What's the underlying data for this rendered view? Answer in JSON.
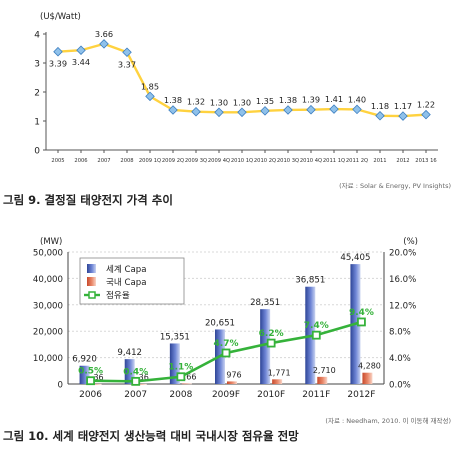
{
  "chart_data": [
    {
      "type": "line",
      "unit_label": "(U$/Watt)",
      "x": [
        "2005",
        "2006",
        "2007",
        "2008",
        "2009 1Q",
        "2009 2Q",
        "2009 3Q",
        "2009 4Q",
        "2010 1Q",
        "2010 2Q",
        "2010 3Q",
        "2010 4Q",
        "2011 1Q",
        "2011 2Q",
        "2011",
        "2012",
        "2013 16"
      ],
      "x_tick_labels": [
        "2005",
        "2006",
        "2007",
        "2008",
        "2009 1Q",
        "2009 2Q",
        "2009 3Q",
        "2009 4Q",
        "2010 1Q",
        "2010 2Q",
        "2010 3Q",
        "2010 4Q",
        "2011 1Q",
        "2011 2Q",
        "2011",
        "2012",
        "2013 16"
      ],
      "series": [
        {
          "values": [
            3.39,
            3.44,
            3.66,
            3.37,
            1.85,
            1.38,
            1.32,
            1.3,
            1.3,
            1.35,
            1.38,
            1.39,
            1.41,
            1.4,
            1.18,
            1.17,
            1.22
          ]
        }
      ],
      "data_labels": [
        "3.39",
        "3.44",
        "3.66",
        "3.37",
        "1.85",
        "1.38",
        "1.32",
        "1.30",
        "1.30",
        "1.35",
        "1.38",
        "1.39",
        "1.41",
        "1.40",
        "1.18",
        "1.17",
        "1.22"
      ],
      "y_ticks": [
        "4",
        "3",
        "2",
        "1",
        "0"
      ],
      "ylim": [
        0,
        4
      ],
      "grid": false,
      "caption": "그림 9. 결정질 태양전지 가격 추이",
      "source": "(자료 : Solar & Energy, PV Insights)",
      "colors": {
        "line": "#ffd23f",
        "marker": "#8fc1ea"
      }
    },
    {
      "type": "bar",
      "categories": [
        "2006",
        "2007",
        "2008",
        "2009F",
        "2010F",
        "2011F",
        "2012F"
      ],
      "series": [
        {
          "name": "세계 Capa",
          "values": [
            6920,
            9412,
            15351,
            20651,
            28351,
            36851,
            45405
          ],
          "labels": [
            "6,920",
            "9,412",
            "15,351",
            "20,651",
            "28,351",
            "36,851",
            "45,405"
          ]
        },
        {
          "name": "국내 Capa",
          "values": [
            36,
            36,
            166,
            976,
            1771,
            2710,
            4280
          ],
          "labels": [
            "36",
            "36",
            "166",
            "976",
            "1,771",
            "2,710",
            "4,280"
          ]
        },
        {
          "name": "점유율",
          "type": "line",
          "axis": "right",
          "values": [
            0.5,
            0.4,
            1.1,
            4.7,
            6.2,
            7.4,
            9.4
          ],
          "labels": [
            "0.5%",
            "0.4%",
            "1.1%",
            "4.7%",
            "6.2%",
            "7.4%",
            "9.4%"
          ]
        }
      ],
      "left_unit": "(MW)",
      "right_unit": "(%)",
      "y_left_ticks": [
        "50,000",
        "40,000",
        "30,000",
        "20,000",
        "10,000",
        "0"
      ],
      "y_right_ticks": [
        "20.0%",
        "16.0%",
        "12.0%",
        "8.0%",
        "4.0%",
        "0.0%"
      ],
      "ylim_left": [
        0,
        50000
      ],
      "ylim_right": [
        0,
        20
      ],
      "legend_position": "top-left",
      "caption": "그림 10. 세계 태양전지 생산능력 대비 국내시장 점유율 전망",
      "source": "(자료 : Needham, 2010. 이 이동해 재작성)",
      "colors": {
        "world": "#4f67b8",
        "domestic": "#e06a4a",
        "share": "#35b23a"
      }
    }
  ]
}
